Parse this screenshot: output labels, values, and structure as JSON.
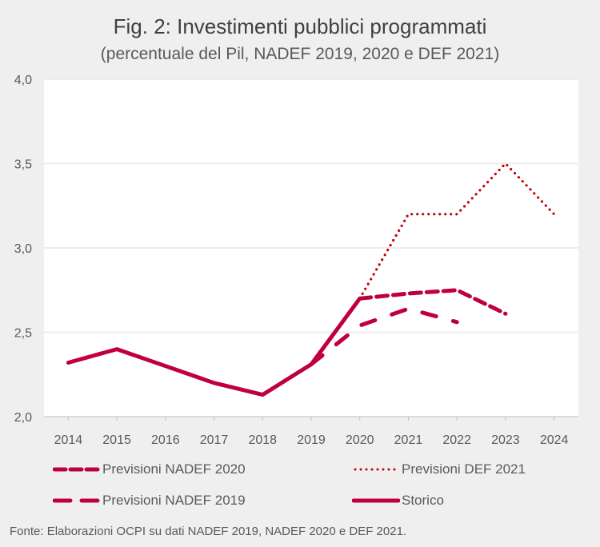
{
  "title": "Fig. 2: Investimenti pubblici programmati",
  "subtitle": "(percentuale del Pil, NADEF 2019, 2020 e DEF 2021)",
  "source": "Fonte: Elaborazioni OCPI su dati NADEF 2019, NADEF 2020 e DEF 2021.",
  "colors": {
    "series": "#c0003c",
    "dotted": "#c00000",
    "grid": "#ececec",
    "background": "#efefef",
    "plot": "#ffffff"
  },
  "chart_data": {
    "type": "line",
    "title": "Fig. 2: Investimenti pubblici programmati",
    "subtitle": "(percentuale del Pil, NADEF 2019, 2020 e DEF 2021)",
    "xlabel": "",
    "ylabel": "",
    "x": [
      "2014",
      "2015",
      "2016",
      "2017",
      "2018",
      "2019",
      "2020",
      "2021",
      "2022",
      "2023",
      "2024"
    ],
    "ylim": [
      2.0,
      4.0
    ],
    "yticks": [
      "2,0",
      "2,5",
      "3,0",
      "3,5",
      "4,0"
    ],
    "ytick_values": [
      2.0,
      2.5,
      3.0,
      3.5,
      4.0
    ],
    "grid": true,
    "legend_position": "bottom",
    "series": [
      {
        "name": "Previsioni NADEF 2020",
        "style": "dashed",
        "values": [
          null,
          null,
          null,
          null,
          null,
          null,
          2.7,
          2.73,
          2.75,
          2.61,
          null
        ]
      },
      {
        "name": "Previsioni DEF 2021",
        "style": "dotted",
        "values": [
          null,
          null,
          null,
          null,
          null,
          null,
          2.7,
          3.2,
          3.2,
          3.5,
          3.2
        ]
      },
      {
        "name": "Previsioni NADEF 2019",
        "style": "longdash",
        "values": [
          null,
          null,
          null,
          null,
          null,
          2.31,
          2.54,
          2.64,
          2.56,
          null,
          null
        ]
      },
      {
        "name": "Storico",
        "style": "solid",
        "values": [
          2.32,
          2.4,
          2.3,
          2.2,
          2.13,
          2.31,
          2.7,
          null,
          null,
          null,
          null
        ]
      }
    ]
  }
}
